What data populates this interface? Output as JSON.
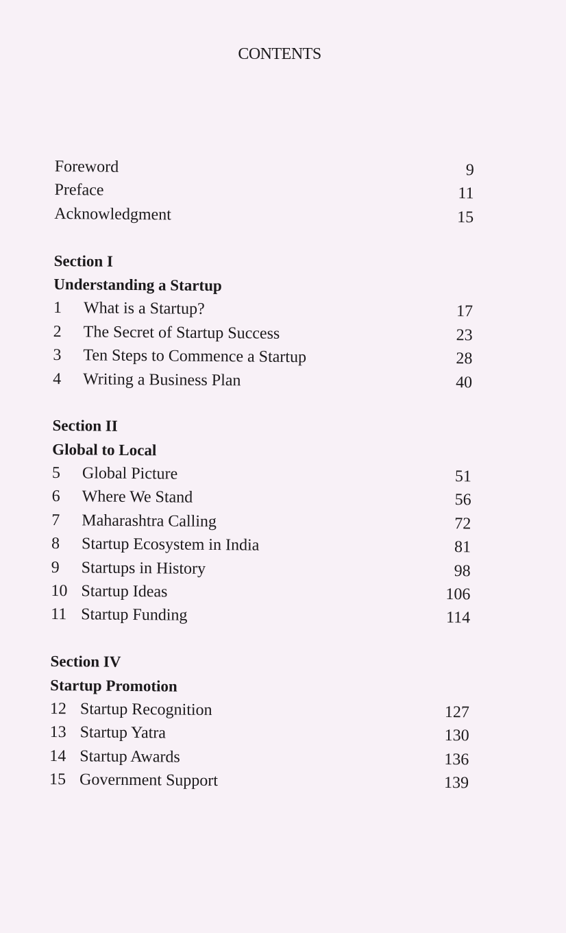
{
  "title": "CONTENTS",
  "front_matter": [
    {
      "label": "Foreword",
      "page": "9"
    },
    {
      "label": "Preface",
      "page": "11"
    },
    {
      "label": "Acknowledgment",
      "page": "15"
    }
  ],
  "sections": [
    {
      "section": "Section I",
      "heading": "Understanding a Startup",
      "chapters": [
        {
          "num": "1",
          "label": "What is a Startup?",
          "page": "17"
        },
        {
          "num": "2",
          "label": "The Secret of Startup Success",
          "page": "23"
        },
        {
          "num": "3",
          "label": "Ten Steps to Commence a Startup",
          "page": "28"
        },
        {
          "num": "4",
          "label": "Writing a Business Plan",
          "page": "40"
        }
      ]
    },
    {
      "section": "Section II",
      "heading": "Global to Local",
      "chapters": [
        {
          "num": "5",
          "label": "Global Picture",
          "page": "51"
        },
        {
          "num": "6",
          "label": "Where We Stand",
          "page": "56"
        },
        {
          "num": "7",
          "label": "Maharashtra Calling",
          "page": "72"
        },
        {
          "num": "8",
          "label": "Startup Ecosystem in India",
          "page": "81"
        },
        {
          "num": "9",
          "label": "Startups in History",
          "page": "98"
        },
        {
          "num": "10",
          "label": "Startup Ideas",
          "page": "106"
        },
        {
          "num": "11",
          "label": "Startup Funding",
          "page": "114"
        }
      ]
    },
    {
      "section": "Section IV",
      "heading": "Startup Promotion",
      "chapters": [
        {
          "num": "12",
          "label": "Startup Recognition",
          "page": "127"
        },
        {
          "num": "13",
          "label": "Startup Yatra",
          "page": "130"
        },
        {
          "num": "14",
          "label": "Startup Awards",
          "page": "136"
        },
        {
          "num": "15",
          "label": "Government Support",
          "page": "139"
        }
      ]
    }
  ]
}
